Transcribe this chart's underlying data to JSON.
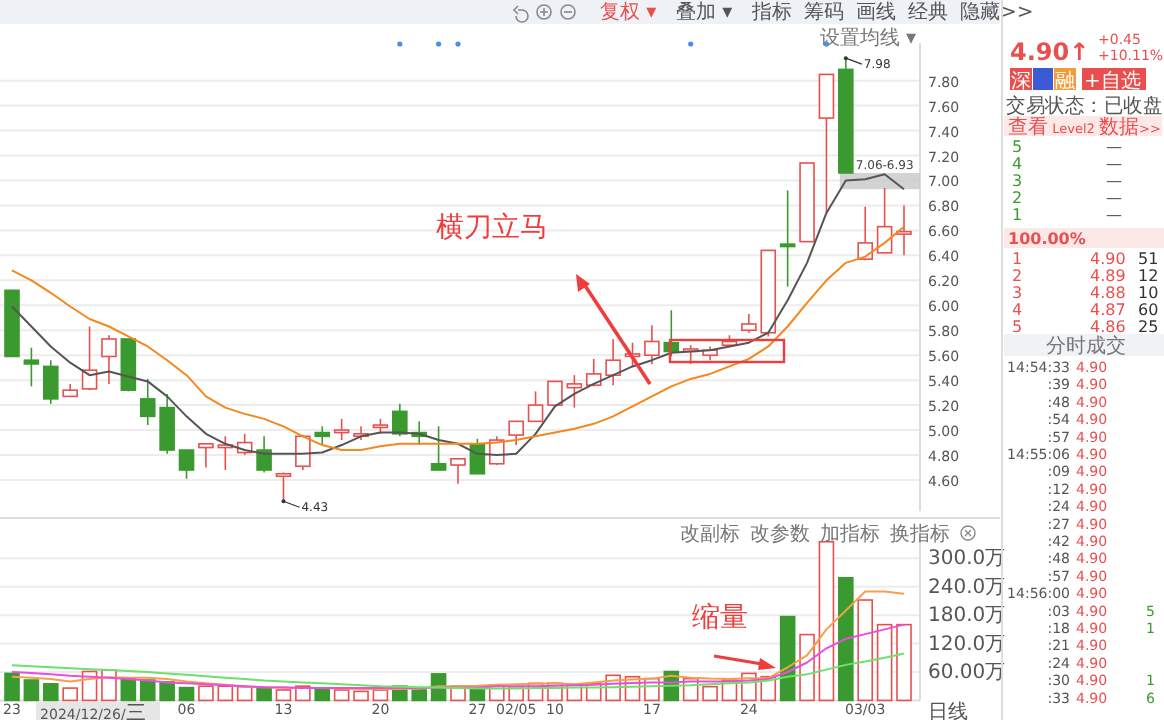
{
  "chart_data": [
    {
      "type": "candlestick",
      "categories": [
        null,
        null,
        null,
        null,
        null,
        null,
        null,
        null,
        null,
        null,
        null,
        null,
        null,
        null,
        null,
        null,
        null,
        null,
        null,
        null,
        null,
        null,
        null,
        null,
        null,
        null,
        null,
        null,
        null,
        null,
        null,
        null,
        null,
        null,
        null,
        null,
        null,
        null,
        null,
        null,
        null,
        null,
        null,
        null,
        null,
        null,
        null
      ],
      "ohlc": [
        [
          6.12,
          6.12,
          5.59,
          5.59
        ],
        [
          5.56,
          5.66,
          5.35,
          5.53
        ],
        [
          5.51,
          5.56,
          5.21,
          5.25
        ],
        [
          5.27,
          5.37,
          5.27,
          5.32
        ],
        [
          5.33,
          5.83,
          5.32,
          5.48
        ],
        [
          5.59,
          5.76,
          5.37,
          5.73
        ],
        [
          5.73,
          5.73,
          5.31,
          5.32
        ],
        [
          5.25,
          5.41,
          5.04,
          5.11
        ],
        [
          5.18,
          5.29,
          4.81,
          4.84
        ],
        [
          4.84,
          4.84,
          4.61,
          4.68
        ],
        [
          4.86,
          4.89,
          4.7,
          4.89
        ],
        [
          4.86,
          4.95,
          4.68,
          4.88
        ],
        [
          4.82,
          4.97,
          4.8,
          4.9
        ],
        [
          4.84,
          4.95,
          4.66,
          4.68
        ],
        [
          4.63,
          4.66,
          4.43,
          4.65
        ],
        [
          4.71,
          4.96,
          4.68,
          4.95
        ],
        [
          4.98,
          5.03,
          4.88,
          4.95
        ],
        [
          4.98,
          5.09,
          4.92,
          5.0
        ],
        [
          4.96,
          5.03,
          4.92,
          4.97
        ],
        [
          5.03,
          5.09,
          4.97,
          5.04
        ],
        [
          5.15,
          5.21,
          4.95,
          4.97
        ],
        [
          4.98,
          5.07,
          4.88,
          4.95
        ],
        [
          4.73,
          5.03,
          4.68,
          4.68
        ],
        [
          4.72,
          4.77,
          4.57,
          4.77
        ],
        [
          4.89,
          4.93,
          4.65,
          4.65
        ],
        [
          4.73,
          4.95,
          4.72,
          4.92
        ],
        [
          4.96,
          5.07,
          4.88,
          5.07
        ],
        [
          5.07,
          5.31,
          5.07,
          5.2
        ],
        [
          5.2,
          5.39,
          5.2,
          5.39
        ],
        [
          5.34,
          5.44,
          5.18,
          5.37
        ],
        [
          5.36,
          5.57,
          5.35,
          5.45
        ],
        [
          5.44,
          5.73,
          5.36,
          5.56
        ],
        [
          5.6,
          5.7,
          5.51,
          5.61
        ],
        [
          5.6,
          5.84,
          5.53,
          5.71
        ],
        [
          5.7,
          5.96,
          5.59,
          5.63
        ],
        [
          5.64,
          5.68,
          5.53,
          5.65
        ],
        [
          5.6,
          5.67,
          5.56,
          5.64
        ],
        [
          5.68,
          5.76,
          5.67,
          5.71
        ],
        [
          5.8,
          5.93,
          5.78,
          5.85
        ],
        [
          5.78,
          6.44,
          5.75,
          6.44
        ],
        [
          6.49,
          6.92,
          6.15,
          6.48
        ],
        [
          6.51,
          7.14,
          6.51,
          7.14
        ],
        [
          7.5,
          7.85,
          6.74,
          7.85
        ],
        [
          7.89,
          7.98,
          7.06,
          7.06
        ],
        [
          6.37,
          6.79,
          6.36,
          6.5
        ],
        [
          6.42,
          6.94,
          6.42,
          6.63
        ],
        [
          6.57,
          6.8,
          6.4,
          6.59
        ]
      ],
      "colors": [
        "#3b9a2f",
        "#3b9a2f",
        "#3b9a2f",
        "#e8504f",
        "#e8504f",
        "#e8504f",
        "#3b9a2f",
        "#3b9a2f",
        "#3b9a2f",
        "#3b9a2f",
        "#e8504f",
        "#e8504f",
        "#e8504f",
        "#3b9a2f",
        "#e8504f",
        "#e8504f",
        "#3b9a2f",
        "#e8504f",
        "#e8504f",
        "#e8504f",
        "#3b9a2f",
        "#3b9a2f",
        "#3b9a2f",
        "#e8504f",
        "#3b9a2f",
        "#e8504f",
        "#e8504f",
        "#e8504f",
        "#e8504f",
        "#e8504f",
        "#e8504f",
        "#e8504f",
        "#e8504f",
        "#e8504f",
        "#3b9a2f",
        "#e8504f",
        "#e8504f",
        "#e8504f",
        "#e8504f",
        "#e8504f",
        "#3b9a2f",
        "#e8504f",
        "#e8504f",
        "#3b9a2f",
        "#e8504f",
        "#e8504f",
        "#e8504f"
      ],
      "series": [
        {
          "type": "line",
          "color": "#555555",
          "values": [
            5.99,
            5.83,
            5.67,
            5.54,
            5.44,
            5.47,
            5.43,
            5.39,
            5.27,
            5.11,
            4.97,
            4.89,
            4.84,
            4.81,
            4.81,
            4.81,
            4.82,
            4.88,
            4.95,
            4.98,
            4.98,
            4.97,
            4.92,
            4.89,
            4.81,
            4.8,
            4.81,
            4.97,
            5.19,
            5.29,
            5.37,
            5.44,
            5.51,
            5.56,
            5.62,
            5.63,
            5.64,
            5.67,
            5.7,
            5.78,
            6.04,
            6.34,
            6.74,
            7.0,
            7.01,
            7.05,
            6.93
          ]
        },
        {
          "type": "line",
          "color": "#f5871f",
          "values": [
            6.28,
            6.2,
            6.1,
            5.99,
            5.89,
            5.83,
            5.75,
            5.67,
            5.56,
            5.44,
            5.27,
            5.18,
            5.13,
            5.09,
            5.03,
            4.95,
            4.88,
            4.84,
            4.84,
            4.87,
            4.89,
            4.89,
            4.89,
            4.89,
            4.89,
            4.9,
            4.92,
            4.95,
            4.98,
            5.01,
            5.05,
            5.11,
            5.19,
            5.27,
            5.35,
            5.41,
            5.45,
            5.51,
            5.57,
            5.67,
            5.83,
            6.02,
            6.2,
            6.34,
            6.39,
            6.5,
            6.63
          ]
        }
      ],
      "ylim": [
        4.35,
        8.1
      ],
      "yticks": [
        {
          "value": 4.6,
          "label": "4.60"
        },
        {
          "value": 4.8,
          "label": "4.80"
        },
        {
          "value": 5,
          "label": "5.00"
        },
        {
          "value": 5.2,
          "label": "5.20"
        },
        {
          "value": 5.4,
          "label": "5.40"
        },
        {
          "value": 5.6,
          "label": "5.60"
        },
        {
          "value": 5.8,
          "label": "5.80"
        },
        {
          "value": 6,
          "label": "6.00"
        },
        {
          "value": 6.2,
          "label": "6.20"
        },
        {
          "value": 6.4,
          "label": "6.40"
        },
        {
          "value": 6.6,
          "label": "6.60"
        },
        {
          "value": 6.8,
          "label": "6.80"
        },
        {
          "value": 7,
          "label": "7.00"
        },
        {
          "value": 7.2,
          "label": "7.20"
        },
        {
          "value": 7.4,
          "label": "7.40"
        },
        {
          "value": 7.6,
          "label": "7.60"
        },
        {
          "value": 7.8,
          "label": "7.80"
        }
      ],
      "grid": "y",
      "tick_labels": "y",
      "bands": [
        {
          "axis": "y",
          "from": 6.93,
          "to": 7.06,
          "label": "7.06-6.93",
          "color": "#c8c8c8"
        }
      ],
      "annotations": [
        "横刀立马",
        "7.98",
        "4.43",
        "复权 ▾",
        "叠加 ▾",
        "指标",
        "筹码",
        "画线",
        "经典",
        "隐藏>>",
        "设置均线 ▾"
      ]
    },
    {
      "type": "bar",
      "categories": [
        "23",
        null,
        null,
        null,
        null,
        null,
        null,
        null,
        null,
        "06",
        null,
        null,
        null,
        null,
        "13",
        null,
        null,
        null,
        null,
        "20",
        null,
        null,
        null,
        null,
        "27",
        null,
        "02/05",
        null,
        "10",
        null,
        null,
        null,
        null,
        "17",
        null,
        null,
        null,
        null,
        "24",
        null,
        null,
        null,
        null,
        null,
        "03/03",
        null,
        null
      ],
      "series": [
        {
          "type": "bar",
          "colors": [
            "#3b9a2f",
            "#3b9a2f",
            "#3b9a2f",
            "#e8504f",
            "#e8504f",
            "#e8504f",
            "#3b9a2f",
            "#3b9a2f",
            "#3b9a2f",
            "#3b9a2f",
            "#e8504f",
            "#e8504f",
            "#e8504f",
            "#3b9a2f",
            "#e8504f",
            "#e8504f",
            "#3b9a2f",
            "#e8504f",
            "#e8504f",
            "#e8504f",
            "#3b9a2f",
            "#3b9a2f",
            "#3b9a2f",
            "#e8504f",
            "#3b9a2f",
            "#e8504f",
            "#e8504f",
            "#e8504f",
            "#e8504f",
            "#e8504f",
            "#e8504f",
            "#e8504f",
            "#e8504f",
            "#e8504f",
            "#3b9a2f",
            "#e8504f",
            "#e8504f",
            "#e8504f",
            "#e8504f",
            "#e8504f",
            "#3b9a2f",
            "#e8504f",
            "#e8504f",
            "#3b9a2f",
            "#e8504f",
            "#e8504f",
            "#e8504f"
          ],
          "values": [
            57,
            43,
            35,
            26,
            61,
            64,
            47,
            43,
            39,
            27,
            30,
            30,
            29,
            26,
            22,
            30,
            25,
            22,
            19,
            22,
            30,
            22,
            56,
            30,
            25,
            33,
            29,
            36,
            36,
            32,
            36,
            53,
            50,
            46,
            61,
            46,
            29,
            43,
            57,
            50,
            177,
            139,
            335,
            259,
            212,
            160,
            160
          ]
        },
        {
          "type": "line",
          "color": "#f5a04a",
          "values": [
            50,
            48,
            45,
            40,
            45,
            49,
            48,
            48,
            45,
            40,
            36,
            33,
            29,
            28,
            27,
            26,
            26,
            25,
            24,
            24,
            24,
            25,
            30,
            30,
            31,
            33,
            34,
            35,
            36,
            34,
            38,
            42,
            44,
            46,
            52,
            48,
            46,
            45,
            47,
            47,
            70,
            95,
            150,
            190,
            230,
            230,
            225
          ]
        },
        {
          "type": "line",
          "color": "#e84fe0",
          "values": [
            60,
            58,
            55,
            52,
            50,
            48,
            45,
            42,
            38,
            36,
            34,
            32,
            30,
            28,
            27,
            26,
            26,
            26,
            26,
            26,
            26,
            26,
            27,
            27,
            27,
            30,
            30,
            30,
            31,
            32,
            33,
            35,
            37,
            38,
            38,
            40,
            40,
            40,
            42,
            45,
            60,
            80,
            110,
            130,
            140,
            150,
            160
          ]
        },
        {
          "type": "line",
          "color": "#6ee06e",
          "values": [
            74,
            72,
            70,
            68,
            66,
            64,
            62,
            60,
            57,
            54,
            51,
            48,
            45,
            42,
            40,
            38,
            36,
            34,
            32,
            30,
            29,
            28,
            27,
            26,
            25,
            25,
            25,
            26,
            26,
            27,
            27,
            28,
            29,
            30,
            31,
            32,
            34,
            36,
            38,
            42,
            50,
            55,
            65,
            75,
            82,
            90,
            99
          ]
        }
      ],
      "ylim": [
        0,
        370
      ],
      "yticks": [
        {
          "value": 60,
          "label": "60.00万"
        },
        {
          "value": 120,
          "label": "120.0万"
        },
        {
          "value": 180,
          "label": "180.0万"
        },
        {
          "value": 240,
          "label": "240.0万"
        },
        {
          "value": 300,
          "label": "300.0万"
        }
      ],
      "grid": "y",
      "annotations": [
        "缩量",
        "改副标",
        "改参数",
        "加指标",
        "换指标",
        "2024/12/26/三",
        "日线"
      ]
    },
    {
      "type": "other",
      "annotations": [
        "4.90↑",
        "+0.45",
        "+10.11%",
        "深",
        "融",
        "+自选",
        "交易状态：已收盘",
        "查看 Level2 数据>>",
        "5\t—",
        "4\t—",
        "3\t—",
        "2\t—",
        "1\t—",
        "100.00%",
        "1\t4.90\t51",
        "2\t4.89\t12",
        "3\t4.88\t10",
        "4\t4.87\t60",
        "5\t4.86\t25",
        "分时成交",
        "14:54:33\t4.90",
        ":39\t4.90",
        ":48\t4.90",
        ":54\t4.90",
        ":57\t4.90",
        "14:55:06\t4.90",
        ":09\t4.90",
        ":12\t4.90",
        ":24\t4.90",
        ":27\t4.90",
        ":42\t4.90",
        ":48\t4.90",
        ":57\t4.90",
        "14:56:00\t4.90",
        ":03\t4.90\t5",
        ":18\t4.90\t1",
        ":21\t4.90",
        ":24\t4.90",
        ":30\t4.90\t1",
        ":33\t4.90\t6"
      ]
    }
  ]
}
